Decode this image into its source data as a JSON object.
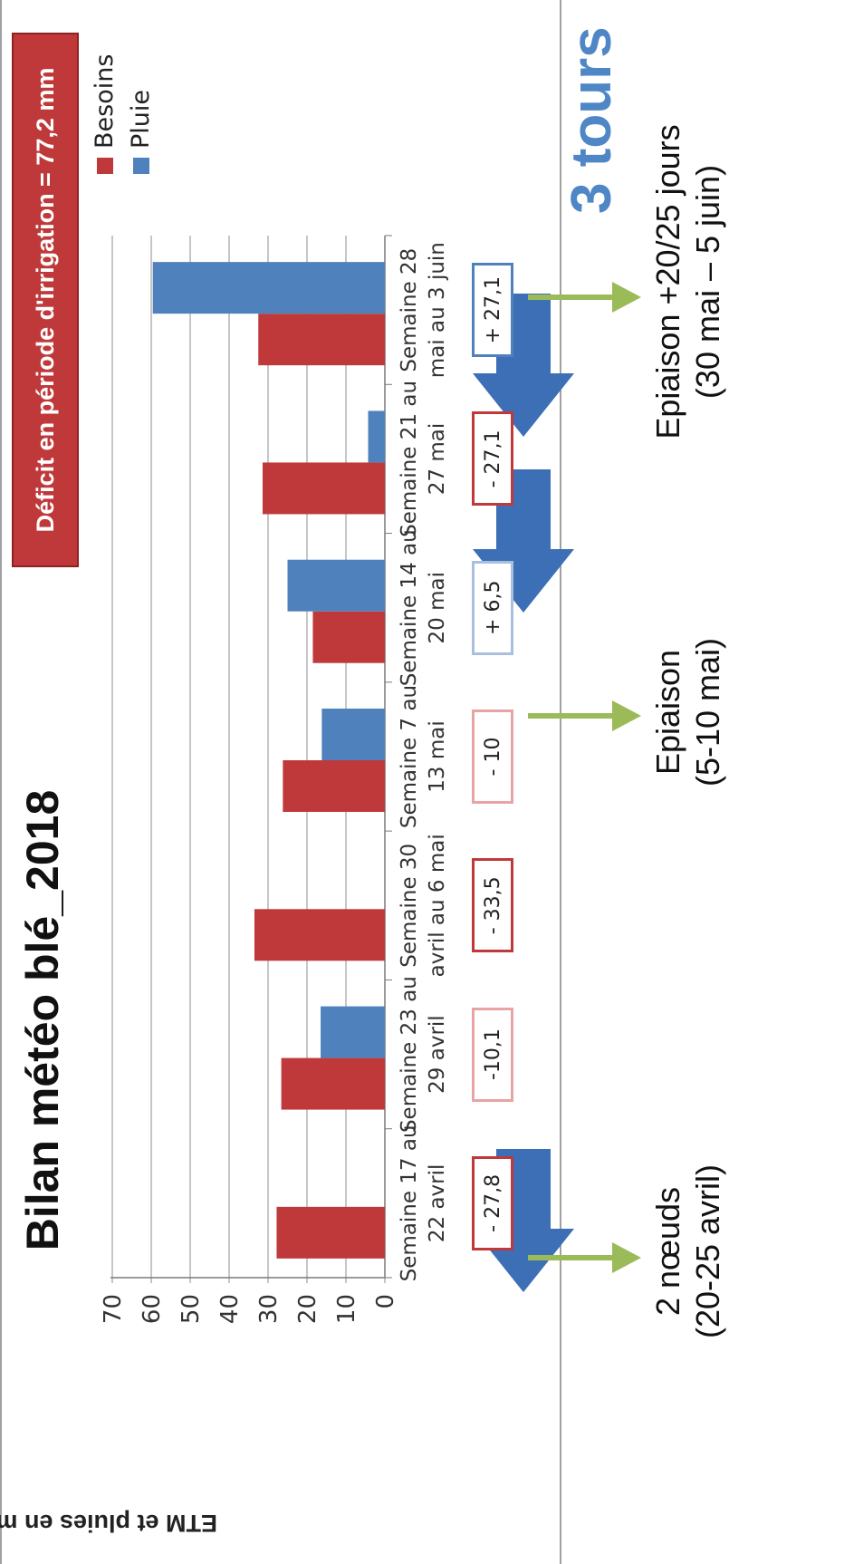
{
  "title": "Bilan météo blé_2018",
  "deficit_label": "Déficit en période d'irrigation = 77,2 mm",
  "tours_label": "3 tours",
  "chart_data": {
    "type": "bar",
    "ylabel": "ETM et pluies en mm",
    "xlabel": "",
    "ylim": [
      0,
      70
    ],
    "yticks": [
      0,
      10,
      20,
      30,
      40,
      50,
      60,
      70
    ],
    "grid": true,
    "legend_placement": "top-right",
    "categories": [
      [
        "Semaine 17 au",
        "22 avril"
      ],
      [
        "Semaine 23 au",
        "29 avril"
      ],
      [
        "Semaine 30",
        "avril au 6 mai"
      ],
      [
        "Semaine 7 au",
        "13 mai"
      ],
      [
        "Semaine 14 au",
        "20 mai"
      ],
      [
        "Semaine 21 au",
        "27 mai"
      ],
      [
        "Semaine 28",
        "mai au 3 juin"
      ]
    ],
    "series": [
      {
        "name": "Besoins",
        "color": "#c0393a",
        "values": [
          27.8,
          26.6,
          33.5,
          26.2,
          18.5,
          31.4,
          32.5
        ]
      },
      {
        "name": "Pluie",
        "color": "#4f81bd",
        "values": [
          0,
          16.5,
          0,
          16.2,
          25.0,
          4.3,
          59.6
        ]
      }
    ]
  },
  "balances": [
    {
      "text": "- 27,8",
      "color": "#c0393a"
    },
    {
      "text": "-10,1",
      "color": "#e8a3a4"
    },
    {
      "text": "- 33,5",
      "color": "#c0393a"
    },
    {
      "text": "- 10",
      "color": "#e8a3a4"
    },
    {
      "text": "+ 6,5",
      "color": "#a9bfe0"
    },
    {
      "text": "- 27,1",
      "color": "#c0393a"
    },
    {
      "text": "+ 27,1",
      "color": "#4f81bd"
    }
  ],
  "stages": [
    {
      "line1": "2 nœuds",
      "line2": "(20-25 avril)"
    },
    {
      "line1": "Epiaison",
      "line2": "(5-10 mai)"
    },
    {
      "line1": "Epiaison +20/25 jours",
      "line2": "(30 mai – 5 juin)"
    }
  ]
}
